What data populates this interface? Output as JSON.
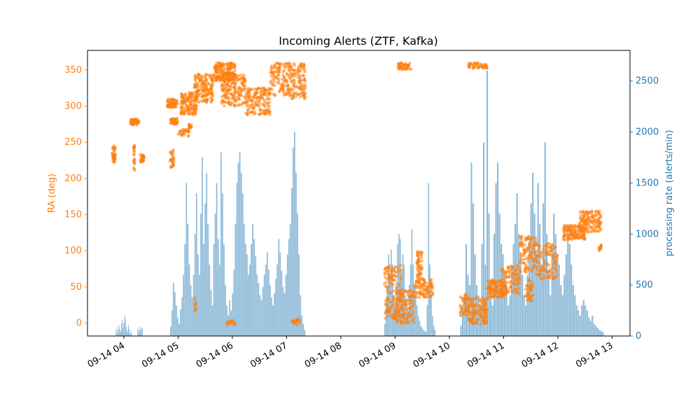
{
  "colors": {
    "ra_points": "#ff7f0e",
    "rate_bars": "#1f77b4",
    "axis": "#000000"
  },
  "chart_data": {
    "type": "bar+scatter",
    "title": "Incoming Alerts (ZTF, Kafka)",
    "x": {
      "type": "time",
      "ticks": [
        "09-14 04",
        "09-14 05",
        "09-14 06",
        "09-14 07",
        "09-14 08",
        "09-14 09",
        "09-14 10",
        "09-14 11",
        "09-14 12",
        "09-14 13"
      ],
      "range_hours": [
        3.33,
        13.33
      ]
    },
    "y_left": {
      "label": "RA (deg)",
      "ticks": [
        0,
        50,
        100,
        150,
        200,
        250,
        300,
        350
      ],
      "range": [
        -18,
        377
      ]
    },
    "y_right": {
      "label": "processing rate (alerts/min)",
      "ticks": [
        0,
        500,
        1000,
        1500,
        2000,
        2500
      ],
      "range": [
        0,
        2800
      ]
    },
    "series": [
      {
        "name": "processing rate",
        "kind": "bar",
        "axis": "right",
        "segments": [
          {
            "start": 3.85,
            "end": 4.15,
            "values": [
              50,
              90,
              30,
              70,
              110,
              60,
              40,
              120,
              160,
              80,
              130,
              200,
              170,
              90,
              60,
              40,
              110,
              70,
              20,
              50,
              30
            ]
          },
          {
            "start": 4.25,
            "end": 4.35,
            "values": [
              70,
              40,
              90,
              60,
              80
            ]
          },
          {
            "start": 4.85,
            "end": 7.35,
            "values": [
              90,
              250,
              520,
              430,
              300,
              180,
              120,
              260,
              380,
              600,
              900,
              1500,
              1100,
              700,
              500,
              380,
              600,
              1000,
              1400,
              800,
              600,
              1200,
              1750,
              900,
              1300,
              1600,
              1100,
              700,
              450,
              300,
              900,
              1200,
              1500,
              950,
              700,
              1800,
              1400,
              900,
              500,
              300,
              200,
              350,
              250,
              420,
              650,
              1100,
              1500,
              1700,
              1800,
              1600,
              1400,
              1100,
              900,
              800,
              600,
              700,
              900,
              1100,
              950,
              780,
              600,
              520,
              400,
              350,
              480,
              600,
              700,
              820,
              650,
              500,
              380,
              300,
              420,
              560,
              700,
              950,
              820,
              640,
              480,
              420,
              600,
              800,
              950,
              1100,
              1450,
              1850,
              2000,
              1600,
              1200,
              800,
              400,
              200,
              120,
              60
            ]
          },
          {
            "start": 8.8,
            "end": 9.75,
            "values": [
              120,
              300,
              500,
              800,
              600,
              850,
              700,
              400,
              300,
              500,
              900,
              1000,
              950,
              600,
              800,
              700,
              400,
              300,
              250,
              500,
              700,
              1050,
              700,
              500,
              400,
              300,
              200,
              150,
              100,
              80,
              60,
              50,
              40,
              300,
              1500,
              700,
              400,
              200,
              100,
              60
            ]
          },
          {
            "start": 10.2,
            "end": 12.85,
            "values": [
              100,
              300,
              400,
              900,
              600,
              500,
              1700,
              1300,
              800,
              500,
              400,
              300,
              900,
              1900,
              700,
              2600,
              1200,
              500,
              300,
              1000,
              1500,
              1700,
              1200,
              900,
              800,
              600,
              500,
              300,
              400,
              700,
              900,
              1100,
              1400,
              1000,
              800,
              600,
              400,
              300,
              600,
              900,
              1300,
              1600,
              1200,
              800,
              1500,
              1100,
              700,
              1300,
              1900,
              1000,
              600,
              400,
              900,
              1200,
              1000,
              800,
              700,
              500,
              400,
              600,
              800,
              1100,
              900,
              700,
              500,
              400,
              300,
              250,
              200,
              300,
              350,
              300,
              250,
              180,
              150,
              200,
              120,
              100,
              80,
              60,
              50,
              40
            ]
          }
        ]
      },
      {
        "name": "RA",
        "kind": "scatter",
        "axis": "left",
        "clusters": [
          {
            "t0": 3.78,
            "t1": 3.85,
            "ra0": 222,
            "ra1": 245,
            "n": 40
          },
          {
            "t0": 4.12,
            "t1": 4.28,
            "ra0": 274,
            "ra1": 282,
            "n": 60
          },
          {
            "t0": 4.18,
            "t1": 4.2,
            "ra0": 210,
            "ra1": 246,
            "n": 25
          },
          {
            "t0": 4.3,
            "t1": 4.38,
            "ra0": 222,
            "ra1": 233,
            "n": 30
          },
          {
            "t0": 4.8,
            "t1": 4.98,
            "ra0": 298,
            "ra1": 310,
            "n": 60
          },
          {
            "t0": 4.85,
            "t1": 4.92,
            "ra0": 215,
            "ra1": 240,
            "n": 30
          },
          {
            "t0": 4.85,
            "t1": 5.0,
            "ra0": 275,
            "ra1": 283,
            "n": 40
          },
          {
            "t0": 5.0,
            "t1": 5.2,
            "ra0": 258,
            "ra1": 268,
            "n": 30
          },
          {
            "t0": 5.05,
            "t1": 5.35,
            "ra0": 288,
            "ra1": 320,
            "n": 140
          },
          {
            "t0": 5.3,
            "t1": 5.65,
            "ra0": 305,
            "ra1": 345,
            "n": 160
          },
          {
            "t0": 5.2,
            "t1": 5.25,
            "ra0": 270,
            "ra1": 275,
            "n": 15
          },
          {
            "t0": 5.65,
            "t1": 6.05,
            "ra0": 335,
            "ra1": 360,
            "n": 200
          },
          {
            "t0": 5.8,
            "t1": 6.25,
            "ra0": 300,
            "ra1": 345,
            "n": 180
          },
          {
            "t0": 6.25,
            "t1": 6.7,
            "ra0": 288,
            "ra1": 325,
            "n": 160
          },
          {
            "t0": 6.7,
            "t1": 7.35,
            "ra0": 310,
            "ra1": 360,
            "n": 240
          },
          {
            "t0": 5.9,
            "t1": 6.05,
            "ra0": -2,
            "ra1": 5,
            "n": 20
          },
          {
            "t0": 7.1,
            "t1": 7.25,
            "ra0": -2,
            "ra1": 5,
            "n": 20
          },
          {
            "t0": 5.3,
            "t1": 5.35,
            "ra0": 5,
            "ra1": 35,
            "n": 10
          },
          {
            "t0": 8.8,
            "t1": 9.15,
            "ra0": 5,
            "ra1": 80,
            "n": 150
          },
          {
            "t0": 9.0,
            "t1": 9.35,
            "ra0": -2,
            "ra1": 45,
            "n": 120
          },
          {
            "t0": 9.35,
            "t1": 9.7,
            "ra0": 35,
            "ra1": 60,
            "n": 100
          },
          {
            "t0": 9.4,
            "t1": 9.5,
            "ra0": 60,
            "ra1": 100,
            "n": 60
          },
          {
            "t0": 9.05,
            "t1": 9.3,
            "ra0": 350,
            "ra1": 360,
            "n": 50
          },
          {
            "t0": 10.2,
            "t1": 10.35,
            "ra0": 10,
            "ra1": 40,
            "n": 50
          },
          {
            "t0": 10.35,
            "t1": 10.7,
            "ra0": -2,
            "ra1": 35,
            "n": 140
          },
          {
            "t0": 10.7,
            "t1": 11.05,
            "ra0": 35,
            "ra1": 60,
            "n": 120
          },
          {
            "t0": 10.95,
            "t1": 11.3,
            "ra0": 40,
            "ra1": 80,
            "n": 100
          },
          {
            "t0": 11.3,
            "t1": 11.6,
            "ra0": 70,
            "ra1": 120,
            "n": 110
          },
          {
            "t0": 11.4,
            "t1": 11.55,
            "ra0": 30,
            "ra1": 60,
            "n": 40
          },
          {
            "t0": 11.6,
            "t1": 12.0,
            "ra0": 60,
            "ra1": 110,
            "n": 120
          },
          {
            "t0": 12.1,
            "t1": 12.5,
            "ra0": 115,
            "ra1": 135,
            "n": 140
          },
          {
            "t0": 12.4,
            "t1": 12.8,
            "ra0": 125,
            "ra1": 155,
            "n": 150
          },
          {
            "t0": 12.75,
            "t1": 12.8,
            "ra0": 100,
            "ra1": 108,
            "n": 15
          },
          {
            "t0": 10.35,
            "t1": 10.7,
            "ra0": 352,
            "ra1": 360,
            "n": 50
          }
        ]
      }
    ],
    "grid": false,
    "legend": "none"
  }
}
